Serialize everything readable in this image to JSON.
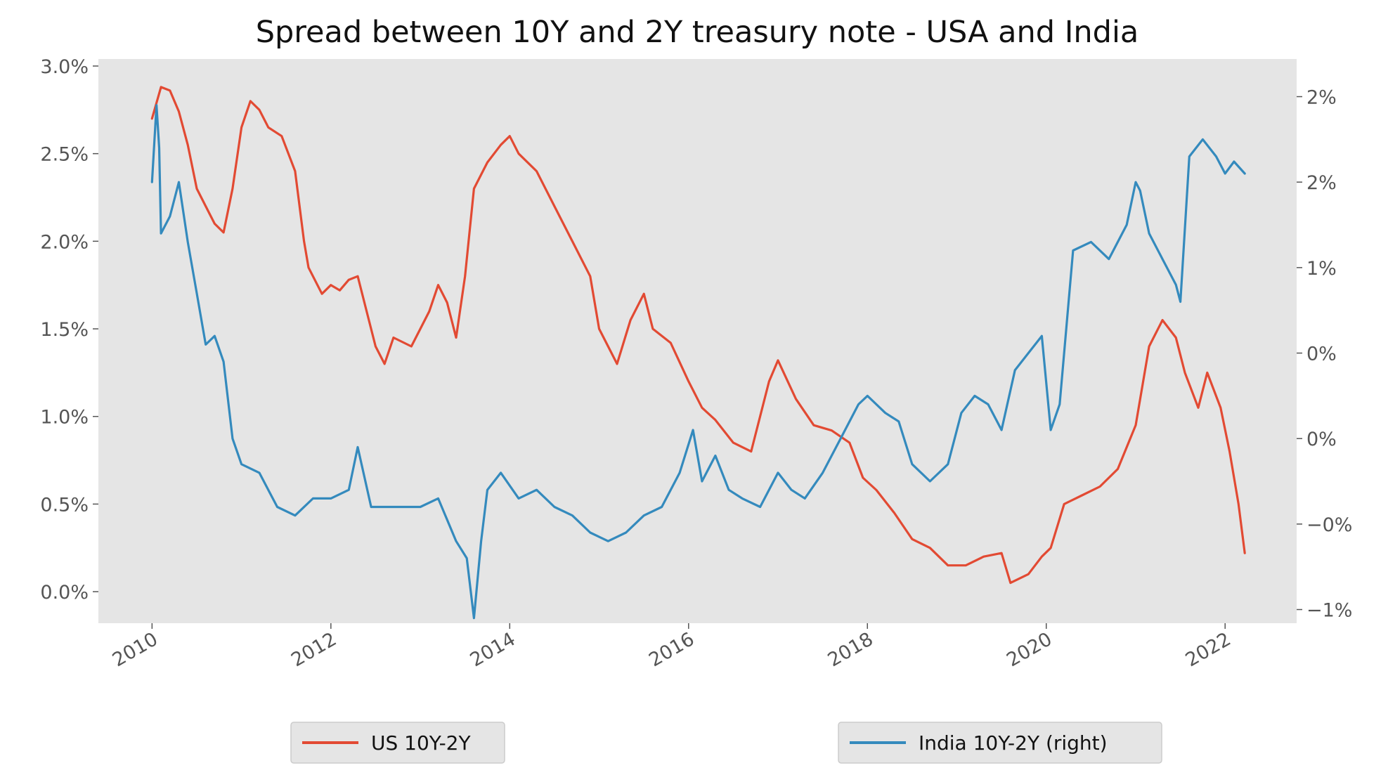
{
  "chart_data": {
    "type": "line",
    "title": "Spread between 10Y and 2Y treasury note - USA and India",
    "xlabel": "",
    "ylabel": "",
    "x_ticks": [
      "2010",
      "2012",
      "2014",
      "2016",
      "2018",
      "2020",
      "2022"
    ],
    "x_tick_values": [
      2010,
      2012,
      2014,
      2016,
      2018,
      2020,
      2022
    ],
    "xlim": [
      2009.4,
      2022.8
    ],
    "y_left": {
      "ylim": [
        -0.18,
        3.04
      ],
      "ticks": [
        0.0,
        0.5,
        1.0,
        1.5,
        2.0,
        2.5,
        3.0
      ],
      "tick_labels": [
        "0.0%",
        "0.5%",
        "1.0%",
        "1.5%",
        "2.0%",
        "2.5%",
        "3.0%"
      ]
    },
    "y_right": {
      "ylim": [
        -1.08,
        2.22
      ],
      "ticks": [
        -1.0,
        -0.5,
        0.0,
        0.5,
        1.0,
        1.5,
        2.0
      ],
      "tick_labels": [
        "−1%",
        "−0%",
        "0%",
        "0%",
        "1%",
        "2%",
        "2%"
      ]
    },
    "grid": false,
    "legend": [
      {
        "label": "US 10Y-2Y",
        "placement": "bottom-left"
      },
      {
        "label": "India 10Y-2Y (right)",
        "placement": "bottom-right"
      }
    ],
    "series": [
      {
        "name": "US 10Y-2Y",
        "axis": "left",
        "color": "#E24A33",
        "x": [
          2010.0,
          2010.1,
          2010.2,
          2010.3,
          2010.4,
          2010.5,
          2010.6,
          2010.7,
          2010.8,
          2010.9,
          2011.0,
          2011.1,
          2011.2,
          2011.3,
          2011.45,
          2011.6,
          2011.7,
          2011.75,
          2011.9,
          2012.0,
          2012.1,
          2012.2,
          2012.3,
          2012.4,
          2012.5,
          2012.6,
          2012.7,
          2012.9,
          2013.0,
          2013.1,
          2013.2,
          2013.3,
          2013.4,
          2013.5,
          2013.6,
          2013.75,
          2013.9,
          2014.0,
          2014.1,
          2014.3,
          2014.5,
          2014.7,
          2014.9,
          2015.0,
          2015.1,
          2015.2,
          2015.35,
          2015.5,
          2015.6,
          2015.8,
          2016.0,
          2016.15,
          2016.3,
          2016.5,
          2016.7,
          2016.9,
          2017.0,
          2017.2,
          2017.4,
          2017.6,
          2017.8,
          2017.95,
          2018.1,
          2018.3,
          2018.5,
          2018.7,
          2018.9,
          2019.1,
          2019.3,
          2019.5,
          2019.6,
          2019.8,
          2019.95,
          2020.05,
          2020.2,
          2020.4,
          2020.6,
          2020.8,
          2021.0,
          2021.15,
          2021.3,
          2021.45,
          2021.55,
          2021.7,
          2021.8,
          2021.95,
          2022.05,
          2022.15,
          2022.22
        ],
        "y": [
          2.7,
          2.88,
          2.86,
          2.74,
          2.55,
          2.3,
          2.2,
          2.1,
          2.05,
          2.3,
          2.65,
          2.8,
          2.75,
          2.65,
          2.6,
          2.4,
          2.0,
          1.85,
          1.7,
          1.75,
          1.72,
          1.78,
          1.8,
          1.6,
          1.4,
          1.3,
          1.45,
          1.4,
          1.5,
          1.6,
          1.75,
          1.65,
          1.45,
          1.8,
          2.3,
          2.45,
          2.55,
          2.6,
          2.5,
          2.4,
          2.2,
          2.0,
          1.8,
          1.5,
          1.4,
          1.3,
          1.55,
          1.7,
          1.5,
          1.42,
          1.2,
          1.05,
          0.98,
          0.85,
          0.8,
          1.2,
          1.32,
          1.1,
          0.95,
          0.92,
          0.85,
          0.65,
          0.58,
          0.45,
          0.3,
          0.25,
          0.15,
          0.15,
          0.2,
          0.22,
          0.05,
          0.1,
          0.2,
          0.25,
          0.5,
          0.55,
          0.6,
          0.7,
          0.95,
          1.4,
          1.55,
          1.45,
          1.25,
          1.05,
          1.25,
          1.05,
          0.8,
          0.5,
          0.22
        ]
      },
      {
        "name": "India 10Y-2Y (right)",
        "axis": "right",
        "color": "#348ABD",
        "x": [
          2010.0,
          2010.05,
          2010.08,
          2010.1,
          2010.2,
          2010.3,
          2010.4,
          2010.5,
          2010.6,
          2010.7,
          2010.8,
          2010.9,
          2011.0,
          2011.2,
          2011.4,
          2011.6,
          2011.8,
          2012.0,
          2012.2,
          2012.3,
          2012.45,
          2012.6,
          2012.8,
          2013.0,
          2013.2,
          2013.4,
          2013.52,
          2013.6,
          2013.68,
          2013.75,
          2013.9,
          2014.1,
          2014.3,
          2014.5,
          2014.7,
          2014.9,
          2015.1,
          2015.3,
          2015.5,
          2015.7,
          2015.9,
          2016.05,
          2016.15,
          2016.3,
          2016.45,
          2016.6,
          2016.8,
          2017.0,
          2017.15,
          2017.3,
          2017.5,
          2017.7,
          2017.9,
          2018.0,
          2018.2,
          2018.35,
          2018.5,
          2018.7,
          2018.9,
          2019.05,
          2019.2,
          2019.35,
          2019.5,
          2019.65,
          2019.8,
          2019.95,
          2020.05,
          2020.15,
          2020.3,
          2020.5,
          2020.7,
          2020.9,
          2021.0,
          2021.05,
          2021.15,
          2021.3,
          2021.45,
          2021.5,
          2021.6,
          2021.75,
          2021.9,
          2022.0,
          2022.1,
          2022.22
        ],
        "y": [
          1.5,
          1.95,
          1.7,
          1.2,
          1.3,
          1.5,
          1.15,
          0.85,
          0.55,
          0.6,
          0.45,
          0.0,
          -0.15,
          -0.2,
          -0.4,
          -0.45,
          -0.35,
          -0.35,
          -0.3,
          -0.05,
          -0.4,
          -0.4,
          -0.4,
          -0.4,
          -0.35,
          -0.6,
          -0.7,
          -1.05,
          -0.6,
          -0.3,
          -0.2,
          -0.35,
          -0.3,
          -0.4,
          -0.45,
          -0.55,
          -0.6,
          -0.55,
          -0.45,
          -0.4,
          -0.2,
          0.05,
          -0.25,
          -0.1,
          -0.3,
          -0.35,
          -0.4,
          -0.2,
          -0.3,
          -0.35,
          -0.2,
          0.0,
          0.2,
          0.25,
          0.15,
          0.1,
          -0.15,
          -0.25,
          -0.15,
          0.15,
          0.25,
          0.2,
          0.05,
          0.4,
          0.5,
          0.6,
          0.05,
          0.2,
          1.1,
          1.15,
          1.05,
          1.25,
          1.5,
          1.45,
          1.2,
          1.05,
          0.9,
          0.8,
          1.65,
          1.75,
          1.65,
          1.55,
          1.62,
          1.55
        ]
      }
    ]
  }
}
